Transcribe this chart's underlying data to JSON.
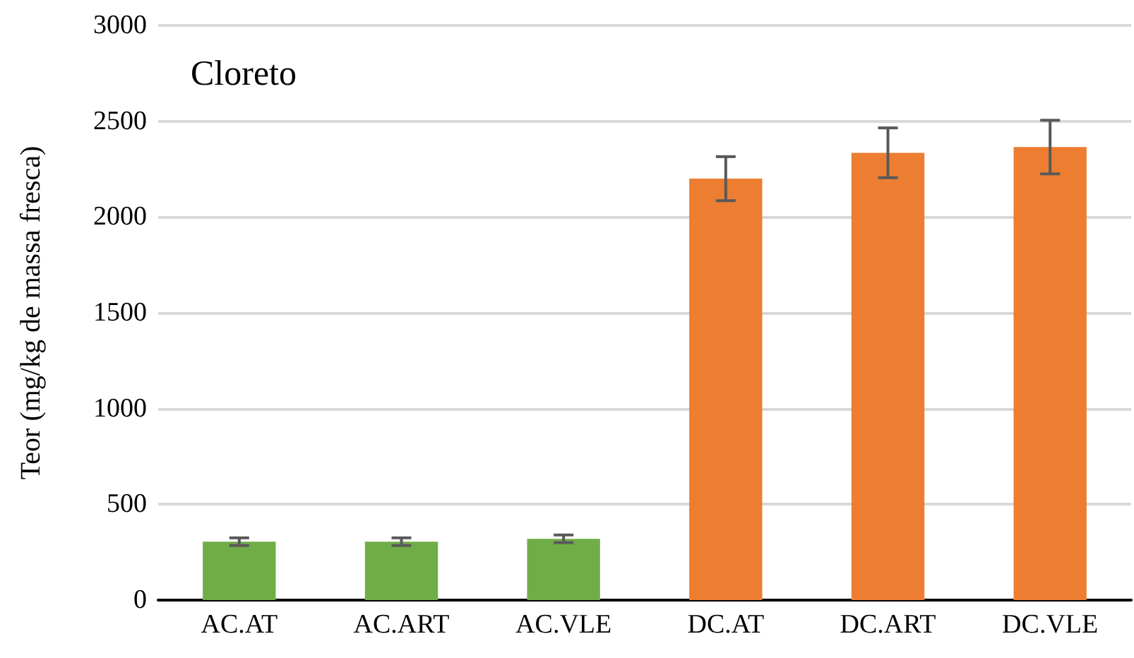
{
  "chart_data": {
    "type": "bar",
    "title": "Cloreto",
    "ylabel": "Teor (mg/kg de massa fresca)",
    "categories": [
      "AC.AT",
      "AC.ART",
      "AC.VLE",
      "DC.AT",
      "DC.ART",
      "DC.VLE"
    ],
    "values": [
      305,
      305,
      320,
      2200,
      2335,
      2365
    ],
    "colors": [
      "#70ad47",
      "#70ad47",
      "#70ad47",
      "#ed7d31",
      "#ed7d31",
      "#ed7d31"
    ],
    "errors": [
      20,
      20,
      20,
      115,
      130,
      140
    ],
    "ylim": [
      0,
      3000
    ],
    "yticks": [
      0,
      500,
      1000,
      1500,
      2000,
      2500,
      3000
    ],
    "grid": "y"
  }
}
